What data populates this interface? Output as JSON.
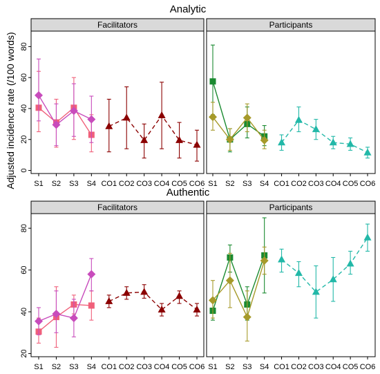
{
  "figure": {
    "ylabel": "Adjusted incidence rate (/100 words)"
  },
  "colors": {
    "fac_pink": "#f0607a",
    "fac_magenta": "#c84cbc",
    "fac_dark": "#8b0000",
    "par_green": "#1a8a30",
    "par_olive": "#a69a2a",
    "par_teal": "#22b8a8",
    "panel_header": "#d9d9d9"
  },
  "chart_data": [
    {
      "type": "line",
      "title": "Analytic",
      "ylim": [
        -2,
        90
      ],
      "yticks": [
        0,
        20,
        40,
        60,
        80
      ],
      "panels": [
        {
          "header": "Facilitators",
          "categories": [
            "S1",
            "S2",
            "S3",
            "S4",
            "CO1",
            "CO2",
            "CO3",
            "CO4",
            "CO5",
            "CO6"
          ],
          "series": [
            {
              "key": "fac_sq",
              "marker": "square",
              "color": "fac_pink",
              "line": "solid",
              "x": [
                "S1",
                "S2",
                "S3",
                "S4"
              ],
              "y": [
                40.5,
                31,
                40.5,
                23
              ],
              "lo": [
                25,
                15,
                20,
                12
              ],
              "hi": [
                64,
                46,
                60,
                36
              ]
            },
            {
              "key": "fac_di",
              "marker": "diamond",
              "color": "fac_magenta",
              "line": "solid",
              "x": [
                "S1",
                "S2",
                "S3",
                "S4"
              ],
              "y": [
                48.5,
                29.5,
                38.5,
                33
              ],
              "lo": [
                32,
                16,
                22,
                18
              ],
              "hi": [
                72,
                43,
                56,
                48
              ]
            },
            {
              "key": "fac_tri",
              "marker": "triangle",
              "color": "fac_dark",
              "line": "dashed",
              "x": [
                "CO1",
                "CO2",
                "CO3",
                "CO4",
                "CO5",
                "CO6"
              ],
              "y": [
                28.5,
                34,
                19.5,
                35.5,
                19.5,
                16.5
              ],
              "lo": [
                12,
                14,
                8,
                14,
                8,
                6
              ],
              "hi": [
                46,
                54,
                30,
                57,
                31,
                26
              ]
            }
          ]
        },
        {
          "header": "Participants",
          "categories": [
            "S1",
            "S2",
            "S3",
            "S4",
            "CO1",
            "CO2",
            "CO3",
            "CO4",
            "CO5",
            "CO6"
          ],
          "series": [
            {
              "key": "par_sq",
              "marker": "square",
              "color": "par_green",
              "line": "solid",
              "x": [
                "S1",
                "S2",
                "S3",
                "S4"
              ],
              "y": [
                57.5,
                20,
                30,
                22
              ],
              "lo": [
                36,
                12,
                21,
                16
              ],
              "hi": [
                81,
                27,
                41,
                29
              ]
            },
            {
              "key": "par_di",
              "marker": "diamond",
              "color": "par_olive",
              "line": "solid",
              "x": [
                "S1",
                "S2",
                "S3",
                "S4"
              ],
              "y": [
                34.5,
                20,
                34,
                19.5
              ],
              "lo": [
                26,
                13,
                25,
                14
              ],
              "hi": [
                44,
                27,
                43,
                26
              ]
            },
            {
              "key": "par_tri",
              "marker": "triangle",
              "color": "par_teal",
              "line": "dashed",
              "x": [
                "CO1",
                "CO2",
                "CO3",
                "CO4",
                "CO5",
                "CO6"
              ],
              "y": [
                18,
                32.5,
                26.5,
                18,
                17,
                11.5
              ],
              "lo": [
                13,
                25,
                20,
                14,
                13,
                8
              ],
              "hi": [
                23,
                41,
                33,
                22,
                21,
                15
              ]
            }
          ]
        }
      ]
    },
    {
      "type": "line",
      "title": "Authentic",
      "ylim": [
        18.5,
        87
      ],
      "yticks": [
        20,
        40,
        60,
        80
      ],
      "panels": [
        {
          "header": "Facilitators",
          "categories": [
            "S1",
            "S2",
            "S3",
            "S4",
            "CO1",
            "CO2",
            "CO3",
            "CO4",
            "CO5",
            "CO6"
          ],
          "series": [
            {
              "key": "fac_sq",
              "marker": "square",
              "color": "fac_pink",
              "line": "solid",
              "x": [
                "S1",
                "S2",
                "S3",
                "S4"
              ],
              "y": [
                30.5,
                37.5,
                43.5,
                43
              ],
              "lo": [
                25,
                23,
                39,
                36
              ],
              "hi": [
                37,
                52,
                48,
                50
              ]
            },
            {
              "key": "fac_di",
              "marker": "diamond",
              "color": "fac_magenta",
              "line": "solid",
              "x": [
                "S1",
                "S2",
                "S3",
                "S4"
              ],
              "y": [
                35.5,
                39,
                37,
                58
              ],
              "lo": [
                29,
                30,
                28,
                50
              ],
              "hi": [
                42,
                50,
                46,
                65.5
              ]
            },
            {
              "key": "fac_tri",
              "marker": "triangle",
              "color": "fac_dark",
              "line": "dashed",
              "x": [
                "CO1",
                "CO2",
                "CO3",
                "CO4",
                "CO5",
                "CO6"
              ],
              "y": [
                45,
                49,
                49.5,
                41,
                47.5,
                41
              ],
              "lo": [
                42,
                46,
                46.5,
                38,
                44,
                38
              ],
              "hi": [
                48,
                52,
                53,
                44,
                50,
                44
              ]
            }
          ]
        },
        {
          "header": "Participants",
          "categories": [
            "S1",
            "S2",
            "S3",
            "S4",
            "CO1",
            "CO2",
            "CO3",
            "CO4",
            "CO5",
            "CO6"
          ],
          "series": [
            {
              "key": "par_sq",
              "marker": "square",
              "color": "par_green",
              "line": "solid",
              "x": [
                "S1",
                "S2",
                "S3",
                "S4"
              ],
              "y": [
                40.5,
                66,
                43.5,
                67
              ],
              "lo": [
                36,
                59,
                36,
                49
              ],
              "hi": [
                45,
                72,
                52,
                85
              ]
            },
            {
              "key": "par_di",
              "marker": "diamond",
              "color": "par_olive",
              "line": "solid",
              "x": [
                "S1",
                "S2",
                "S3",
                "S4"
              ],
              "y": [
                45.5,
                55,
                37.5,
                64.5
              ],
              "lo": [
                37,
                42,
                26,
                58
              ],
              "hi": [
                55,
                68,
                50,
                71
              ]
            },
            {
              "key": "par_tri",
              "marker": "triangle",
              "color": "par_teal",
              "line": "dashed",
              "x": [
                "CO1",
                "CO2",
                "CO3",
                "CO4",
                "CO5",
                "CO6"
              ],
              "y": [
                65,
                58.5,
                49.5,
                55.5,
                63,
                75.5
              ],
              "lo": [
                59,
                52,
                37,
                45,
                58,
                69
              ],
              "hi": [
                70,
                64,
                62,
                66,
                69,
                82
              ]
            }
          ]
        }
      ]
    }
  ]
}
